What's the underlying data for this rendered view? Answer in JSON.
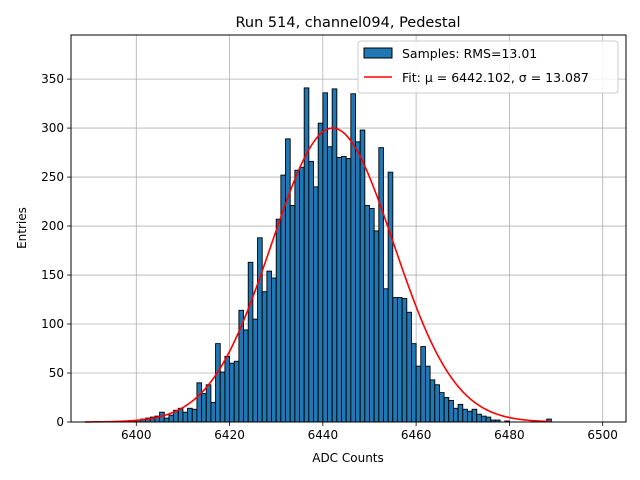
{
  "chart_data": {
    "type": "bar",
    "title": "Run 514, channel094, Pedestal",
    "xlabel": "ADC Counts",
    "ylabel": "Entries",
    "xlim": [
      6386,
      6505
    ],
    "ylim": [
      0,
      395
    ],
    "x_ticks": [
      6400,
      6420,
      6440,
      6460,
      6480,
      6500
    ],
    "y_ticks": [
      0,
      50,
      100,
      150,
      200,
      250,
      300,
      350
    ],
    "grid": true,
    "legend_position": "top-right",
    "histogram": {
      "name": "Samples: RMS=13.01",
      "color": "#1f77b4",
      "edge_color": "#000000",
      "bin_start": 6389,
      "bin_width": 1,
      "counts": [
        0,
        0,
        0,
        0,
        0,
        0,
        0,
        0,
        0,
        0,
        1,
        2,
        3,
        4,
        5,
        6,
        10,
        4,
        7,
        12,
        14,
        10,
        14,
        13,
        40,
        29,
        38,
        20,
        80,
        51,
        67,
        60,
        62,
        114,
        94,
        163,
        105,
        188,
        133,
        154,
        147,
        207,
        252,
        289,
        221,
        257,
        260,
        341,
        266,
        240,
        305,
        336,
        281,
        340,
        270,
        271,
        269,
        335,
        286,
        298,
        221,
        218,
        195,
        280,
        136,
        255,
        127,
        127,
        126,
        112,
        80,
        57,
        77,
        57,
        43,
        38,
        30,
        25,
        22,
        14,
        18,
        13,
        11,
        13,
        8,
        6,
        5,
        2,
        2,
        0,
        1,
        0,
        0,
        0,
        0,
        0,
        0,
        0,
        0,
        3
      ]
    },
    "fit": {
      "name": "Fit: μ = 6442.102, σ = 13.087",
      "color": "#ff0000",
      "mu": 6442.102,
      "sigma": 13.087,
      "amplitude": 300,
      "x_range": [
        6389,
        6489
      ]
    }
  }
}
